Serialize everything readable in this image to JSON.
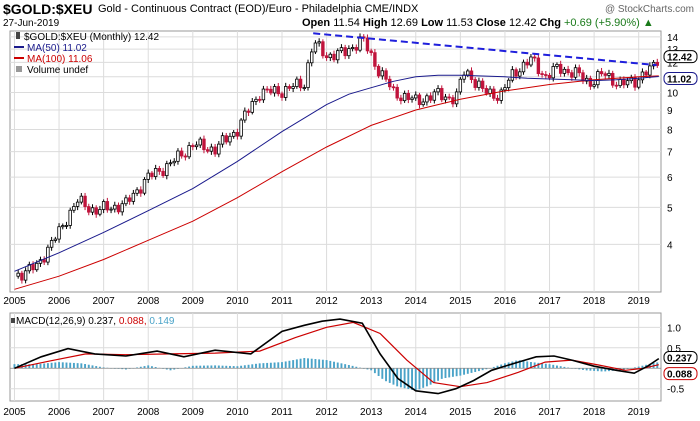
{
  "header": {
    "symbol": "$GOLD:$XEU",
    "description": "Gold - Continuous Contract (EOD)/Euro - Philadelphia  CME/INDX",
    "watermark": "@ StockCharts.com",
    "date": "27-Jun-2019",
    "open_label": "Open",
    "open": "11.54",
    "high_label": "High",
    "high": "12.69",
    "low_label": "Low",
    "low": "11.53",
    "close_label": "Close",
    "close": "12.42",
    "chg_label": "Chg",
    "chg": "+0.69 (+5.90%)",
    "chg_arrow": "▲"
  },
  "colors": {
    "up": "#000000",
    "down": "#c0143c",
    "ma50": "#1a1a8c",
    "ma100": "#cc0000",
    "trendline": "#1f1fdc",
    "grid": "#dcdcdc",
    "macd": "#000000",
    "signal": "#cc0000",
    "histogram": "#4aa3c8"
  },
  "chart_data": [
    {
      "type": "line",
      "title": "$GOLD:$XEU (Monthly)",
      "y_scale": "log",
      "ylim": [
        3,
        14.5
      ],
      "y_ticks": [
        "4",
        "5",
        "6",
        "7",
        "8",
        "9",
        "10",
        "11",
        "12",
        "13",
        "14"
      ],
      "x_ticks": [
        "2005",
        "2006",
        "2007",
        "2008",
        "2009",
        "2010",
        "2011",
        "2012",
        "2013",
        "2014",
        "2015",
        "2016",
        "2017",
        "2018",
        "2019"
      ],
      "xlim": [
        2004.9,
        2019.5
      ],
      "grid": true,
      "legend_position": "top-left",
      "legend": {
        "price": "$GOLD:$XEU (Monthly) 12.42",
        "ma50": "MA(50) 11.02",
        "ma100": "MA(100) 11.06",
        "volume": "Volume undef"
      },
      "price_x": [
        2005.0,
        2005.5,
        2006.0,
        2006.4,
        2006.8,
        2007.5,
        2008.0,
        2008.5,
        2009.0,
        2009.5,
        2010.0,
        2010.5,
        2011.0,
        2011.5,
        2011.7,
        2012.0,
        2012.4,
        2012.8,
        2013.1,
        2013.5,
        2013.8,
        2014.0,
        2014.5,
        2014.9,
        2015.1,
        2015.5,
        2015.9,
        2016.2,
        2016.6,
        2016.9,
        2017.2,
        2017.6,
        2017.9,
        2018.2,
        2018.6,
        2018.9,
        2019.1,
        2019.3,
        2019.45
      ],
      "price": [
        3.3,
        3.5,
        4.3,
        5.2,
        4.9,
        5.1,
        6.0,
        6.5,
        7.3,
        7.1,
        8.0,
        10.0,
        10.1,
        10.6,
        13.5,
        12.5,
        12.7,
        13.8,
        11.8,
        10.0,
        9.7,
        9.5,
        9.9,
        9.6,
        11.5,
        10.1,
        9.8,
        11.3,
        12.2,
        11.0,
        11.6,
        11.2,
        10.6,
        11.2,
        10.5,
        10.7,
        11.2,
        11.5,
        12.42
      ],
      "ma50_x": [
        2005.0,
        2006.0,
        2007.0,
        2008.0,
        2009.0,
        2010.0,
        2011.0,
        2012.0,
        2012.5,
        2013.0,
        2013.5,
        2014.0,
        2014.5,
        2015.0,
        2015.5,
        2016.0,
        2016.5,
        2017.0,
        2017.5,
        2018.0,
        2018.5,
        2019.0,
        2019.45
      ],
      "ma50": [
        3.4,
        3.8,
        4.3,
        4.9,
        5.6,
        6.6,
        7.9,
        9.3,
        9.9,
        10.3,
        10.7,
        11.0,
        11.1,
        11.1,
        11.05,
        11.0,
        10.9,
        10.85,
        10.8,
        10.75,
        10.8,
        10.9,
        11.02
      ],
      "ma100_x": [
        2005.0,
        2006.0,
        2007.0,
        2008.0,
        2009.0,
        2010.0,
        2011.0,
        2012.0,
        2013.0,
        2014.0,
        2015.0,
        2016.0,
        2016.5,
        2017.0,
        2017.5,
        2018.0,
        2018.5,
        2019.0,
        2019.45
      ],
      "ma100": [
        3.05,
        3.3,
        3.65,
        4.1,
        4.6,
        5.3,
        6.2,
        7.2,
        8.2,
        9.0,
        9.6,
        10.1,
        10.3,
        10.5,
        10.65,
        10.8,
        10.9,
        11.0,
        11.06
      ],
      "trendline_x": [
        2011.7,
        2019.4
      ],
      "trendline": [
        14.3,
        11.8
      ],
      "last_value_labels": [
        "12.42",
        "11.02"
      ]
    },
    {
      "type": "line",
      "title": "MACD(12,26,9) 0.237, 0.088, 0.149",
      "legend": {
        "label": "MACD(12,26,9)",
        "macd": "0.237",
        "signal": "0.088",
        "histogram": "0.149"
      },
      "ylim": [
        -0.8,
        1.35
      ],
      "y_ticks": [
        "1.0",
        "0.5",
        "-0.5"
      ],
      "x_ticks": [
        "2005",
        "2006",
        "2007",
        "2008",
        "2009",
        "2010",
        "2011",
        "2012",
        "2013",
        "2014",
        "2015",
        "2016",
        "2017",
        "2018",
        "2019"
      ],
      "xlim": [
        2004.9,
        2019.5
      ],
      "macd_x": [
        2005.0,
        2005.6,
        2006.2,
        2006.8,
        2007.5,
        2008.2,
        2008.8,
        2009.5,
        2010.3,
        2011.0,
        2011.5,
        2011.9,
        2012.3,
        2012.8,
        2013.2,
        2013.6,
        2014.0,
        2014.5,
        2014.9,
        2015.3,
        2015.7,
        2016.3,
        2016.7,
        2017.1,
        2017.5,
        2018.0,
        2018.5,
        2018.9,
        2019.2,
        2019.45
      ],
      "macd": [
        0.0,
        0.28,
        0.48,
        0.35,
        0.3,
        0.42,
        0.28,
        0.44,
        0.35,
        0.9,
        1.05,
        1.15,
        1.2,
        1.1,
        0.35,
        -0.25,
        -0.55,
        -0.62,
        -0.5,
        -0.3,
        -0.05,
        0.15,
        0.28,
        0.3,
        0.2,
        0.05,
        -0.05,
        -0.12,
        0.05,
        0.237
      ],
      "signal_x": [
        2005.0,
        2005.8,
        2006.6,
        2007.5,
        2008.5,
        2009.5,
        2010.5,
        2011.3,
        2012.0,
        2012.6,
        2013.2,
        2013.8,
        2014.4,
        2015.0,
        2015.6,
        2016.3,
        2016.9,
        2017.5,
        2018.1,
        2018.7,
        2019.1,
        2019.45
      ],
      "signal": [
        0.0,
        0.18,
        0.35,
        0.33,
        0.35,
        0.37,
        0.42,
        0.75,
        1.0,
        1.12,
        0.85,
        0.2,
        -0.35,
        -0.45,
        -0.35,
        -0.1,
        0.15,
        0.2,
        0.08,
        -0.05,
        0.0,
        0.088
      ],
      "histogram_x": [
        2005.5,
        2006.0,
        2006.5,
        2007.0,
        2007.5,
        2008.0,
        2008.5,
        2009.0,
        2009.5,
        2010.0,
        2010.5,
        2011.0,
        2011.5,
        2012.0,
        2012.5,
        2013.0,
        2013.3,
        2013.6,
        2014.0,
        2014.3,
        2014.6,
        2015.0,
        2015.3,
        2015.6,
        2016.0,
        2016.3,
        2016.6,
        2017.0,
        2017.4,
        2017.8,
        2018.2,
        2018.6,
        2019.0,
        2019.3,
        2019.45
      ],
      "histogram": [
        0.1,
        0.15,
        0.12,
        0.02,
        -0.03,
        0.07,
        -0.05,
        0.06,
        0.07,
        0.05,
        0.12,
        0.15,
        0.25,
        0.2,
        0.08,
        -0.05,
        -0.3,
        -0.45,
        -0.55,
        -0.42,
        -0.25,
        -0.18,
        -0.1,
        -0.02,
        0.12,
        0.2,
        0.15,
        0.1,
        0.02,
        -0.05,
        -0.08,
        -0.05,
        0.04,
        0.12,
        0.149
      ],
      "last_value_labels": [
        "0.237",
        "0.088"
      ]
    }
  ]
}
